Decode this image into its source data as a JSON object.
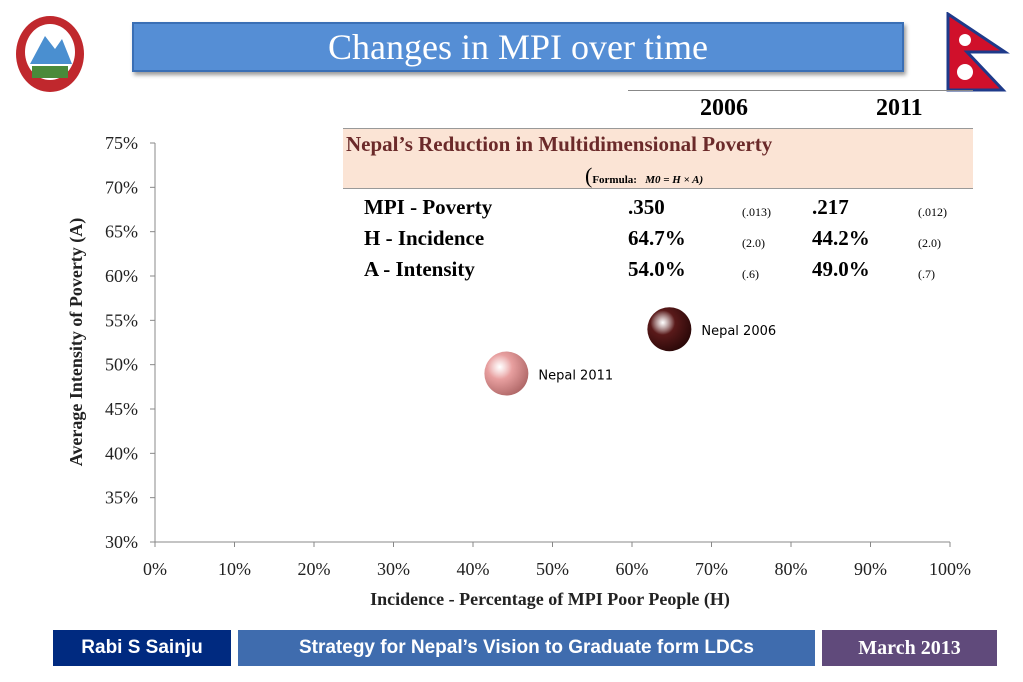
{
  "title": "Changes in MPI over time",
  "table": {
    "years": [
      "2006",
      "2011"
    ],
    "heading": "Nepal’s Reduction in Multidimensional  Poverty",
    "formula_prefix": "Formula:",
    "formula": "M0 = H × A)",
    "rows": [
      {
        "label": "MPI - Poverty",
        "v2006": ".350",
        "se2006": "(.013)",
        "v2011": ".217",
        "se2011": "(.012)"
      },
      {
        "label": "H - Incidence",
        "v2006": "64.7%",
        "se2006": "(2.0)",
        "v2011": "44.2%",
        "se2011": "(2.0)"
      },
      {
        "label": "A - Intensity",
        "v2006": "54.0%",
        "se2006": "(.6)",
        "v2011": "49.0%",
        "se2011": "(.7)"
      }
    ]
  },
  "chart_data": {
    "type": "scatter",
    "xlabel": "Incidence - Percentage of MPI Poor People (H)",
    "ylabel": "Average Intensity of Poverty (A)",
    "xlim": [
      0,
      100
    ],
    "ylim": [
      30,
      75
    ],
    "xticks": [
      "0%",
      "10%",
      "20%",
      "30%",
      "40%",
      "50%",
      "60%",
      "70%",
      "80%",
      "90%",
      "100%"
    ],
    "yticks": [
      "30%",
      "35%",
      "40%",
      "45%",
      "50%",
      "55%",
      "60%",
      "65%",
      "70%",
      "75%"
    ],
    "grid": false,
    "points": [
      {
        "label": "Nepal 2006",
        "x": 64.7,
        "y": 54.0,
        "color": "#5a1a1a"
      },
      {
        "label": "Nepal 2011",
        "x": 44.2,
        "y": 49.0,
        "color": "#e8a0a0"
      }
    ]
  },
  "footer": {
    "author": "Rabi S Sainju",
    "subtitle": "Strategy for Nepal’s Vision to Graduate form LDCs",
    "date": "March   2013"
  }
}
